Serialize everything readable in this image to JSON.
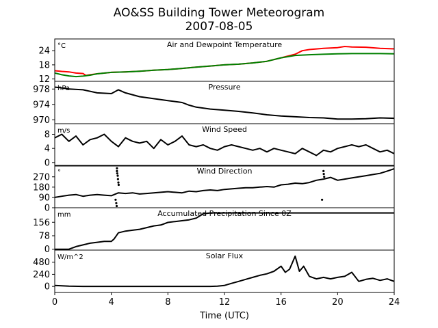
{
  "title_line1": "AO&SS Building Tower Meteorogram",
  "title_line2": "2007-08-05",
  "chart_data": {
    "type": "line",
    "xlabel": "Time (UTC)",
    "xlim": [
      0,
      24
    ],
    "xticks": [
      0,
      4,
      8,
      12,
      16,
      20,
      24
    ],
    "xtick_labels": [
      "0",
      "4",
      "8",
      "12",
      "16",
      "20",
      "24"
    ],
    "panels": [
      {
        "id": "temperature",
        "title": "Air and Dewpoint Temperature",
        "unit": "°C",
        "ylim": [
          11,
          29
        ],
        "yticks": [
          12,
          18,
          24
        ],
        "ytick_labels": [
          "12",
          "18",
          "24"
        ],
        "series": [
          {
            "color": "#ff0000",
            "x": [
              0,
              0.5,
              1,
              1.5,
              2,
              2.2,
              2.5,
              3,
              4,
              5,
              6,
              7,
              8,
              9,
              10,
              11,
              12,
              13,
              14,
              15,
              16,
              17,
              17.5,
              18,
              19,
              20,
              20.5,
              21,
              22,
              23,
              24
            ],
            "y": [
              15.5,
              15.2,
              15.0,
              14.5,
              14.3,
              13.5,
              13.8,
              14.2,
              14.8,
              15.0,
              15.3,
              15.7,
              16.0,
              16.5,
              17.0,
              17.5,
              18.0,
              18.3,
              18.8,
              19.5,
              21.0,
              22.5,
              24.0,
              24.5,
              25.0,
              25.3,
              25.8,
              25.6,
              25.5,
              25.0,
              24.8
            ]
          },
          {
            "color": "#008000",
            "x": [
              0,
              0.5,
              1,
              1.5,
              2,
              2.5,
              3,
              4,
              5,
              6,
              7,
              8,
              9,
              10,
              11,
              12,
              13,
              14,
              15,
              16,
              17,
              18,
              19,
              20,
              21,
              22,
              23,
              24
            ],
            "y": [
              14.5,
              13.8,
              13.3,
              13.0,
              13.2,
              13.6,
              14.2,
              14.8,
              15.0,
              15.3,
              15.7,
              16.0,
              16.5,
              17.0,
              17.5,
              18.0,
              18.3,
              18.8,
              19.5,
              21.0,
              22.0,
              22.3,
              22.5,
              22.7,
              22.8,
              22.8,
              22.8,
              22.7
            ]
          }
        ]
      },
      {
        "id": "pressure",
        "title": "Pressure",
        "unit": "hPa",
        "ylim": [
          969,
          980
        ],
        "yticks": [
          970,
          974,
          978
        ],
        "ytick_labels": [
          "970",
          "974",
          "978"
        ],
        "series": [
          {
            "color": "#000000",
            "x": [
              0,
              0.5,
              1,
              2,
              3,
              4,
              4.5,
              5,
              6,
              7,
              8,
              9,
              9.5,
              10,
              11,
              12,
              13,
              14,
              15,
              16,
              17,
              18,
              19,
              20,
              21,
              22,
              23,
              24
            ],
            "y": [
              978.5,
              978.3,
              978.0,
              977.8,
              977.0,
              976.8,
              977.8,
              977.0,
              976.0,
              975.5,
              975.0,
              974.5,
              973.8,
              973.3,
              972.8,
              972.5,
              972.2,
              971.8,
              971.3,
              971.0,
              970.8,
              970.6,
              970.5,
              970.2,
              970.2,
              970.3,
              970.5,
              970.4
            ]
          }
        ]
      },
      {
        "id": "wind_speed",
        "title": "Wind Speed",
        "unit": "m/s",
        "ylim": [
          -1,
          11
        ],
        "yticks": [
          0,
          4,
          8
        ],
        "ytick_labels": [
          "0",
          "4",
          "8"
        ],
        "series": [
          {
            "color": "#000000",
            "x": [
              0,
              0.5,
              1,
              1.5,
              2,
              2.5,
              3,
              3.5,
              4,
              4.5,
              5,
              5.5,
              6,
              6.5,
              7,
              7.5,
              8,
              8.5,
              9,
              9.5,
              10,
              10.5,
              11,
              11.5,
              12,
              12.5,
              13,
              13.5,
              14,
              14.5,
              15,
              15.5,
              16,
              16.5,
              17,
              17.5,
              18,
              18.5,
              19,
              19.5,
              20,
              20.5,
              21,
              21.5,
              22,
              22.5,
              23,
              23.5,
              24
            ],
            "y": [
              7,
              8,
              6,
              7.5,
              5,
              6.5,
              7,
              8,
              6,
              4.5,
              7,
              6,
              5.5,
              6,
              4,
              6.5,
              5,
              6,
              7.5,
              5,
              4.5,
              5,
              4,
              3.5,
              4.5,
              5,
              4.5,
              4,
              3.5,
              4,
              3,
              4,
              3.5,
              3,
              2.5,
              4,
              3,
              2,
              3.5,
              3,
              4,
              4.5,
              5,
              4.5,
              5,
              4,
              3,
              3.5,
              2.5
            ]
          }
        ]
      },
      {
        "id": "wind_direction",
        "title": "Wind Direction",
        "unit": "°",
        "ylim": [
          0,
          370
        ],
        "yticks": [
          0,
          90,
          180,
          270
        ],
        "ytick_labels": [
          "0",
          "90",
          "180",
          "270"
        ],
        "series": [
          {
            "color": "#000000",
            "x": [
              0,
              0.5,
              1,
              1.5,
              2,
              2.5,
              3,
              3.5,
              4,
              4.5,
              5,
              5.5,
              6,
              6.5,
              7,
              7.5,
              8,
              8.5,
              9,
              9.5,
              10,
              10.5,
              11,
              11.5,
              12,
              12.5,
              13,
              13.5,
              14,
              14.5,
              15,
              15.5,
              16,
              16.5,
              17,
              17.5,
              18,
              18.5,
              19,
              19.5,
              20,
              20.5,
              21,
              21.5,
              22,
              22.5,
              23,
              23.5,
              24
            ],
            "y": [
              90,
              100,
              110,
              115,
              100,
              110,
              115,
              110,
              105,
              130,
              125,
              130,
              120,
              125,
              130,
              135,
              140,
              135,
              130,
              145,
              140,
              150,
              155,
              150,
              160,
              165,
              170,
              175,
              175,
              180,
              185,
              180,
              200,
              205,
              215,
              210,
              220,
              240,
              250,
              265,
              240,
              250,
              260,
              270,
              280,
              290,
              300,
              320,
              340
            ]
          }
        ],
        "scatter": {
          "color": "#000000",
          "x": [
            4.4,
            4.4,
            4.42,
            4.45,
            4.47,
            4.5,
            4.52,
            4.3,
            4.35,
            4.38,
            19,
            19.02,
            19.05,
            18.9
          ],
          "y": [
            345,
            320,
            300,
            280,
            250,
            220,
            200,
            70,
            40,
            15,
            320,
            295,
            270,
            70
          ]
        }
      },
      {
        "id": "precipitation",
        "title": "Accumulated Precipitation Since 0Z",
        "unit": "mm",
        "ylim": [
          -5,
          240
        ],
        "yticks": [
          0,
          78,
          156
        ],
        "ytick_labels": [
          "0",
          "78",
          "156"
        ],
        "series": [
          {
            "color": "#000000",
            "x": [
              0,
              1.0,
              1.5,
              2.0,
              2.5,
              3.0,
              3.5,
              4.0,
              4.2,
              4.5,
              5.0,
              5.5,
              6.0,
              6.5,
              7.0,
              7.5,
              8.0,
              8.5,
              9.0,
              9.5,
              10.0,
              10.5,
              11.0,
              11.5,
              12.0,
              24.0
            ],
            "y": [
              0,
              0,
              15,
              25,
              35,
              40,
              45,
              45,
              60,
              95,
              105,
              110,
              115,
              125,
              135,
              140,
              155,
              160,
              165,
              170,
              180,
              205,
              210,
              210,
              210,
              210
            ]
          }
        ]
      },
      {
        "id": "solar_flux",
        "title": "Solar Flux",
        "unit": "W/m^2",
        "ylim": [
          -120,
          720
        ],
        "yticks": [
          0,
          240,
          480
        ],
        "ytick_labels": [
          "0",
          "240",
          "480"
        ],
        "series": [
          {
            "color": "#000000",
            "x": [
              0,
              1,
              2,
              3,
              4,
              5,
              6,
              7,
              8,
              9,
              10,
              11,
              11.5,
              12,
              12.5,
              13,
              13.5,
              14,
              14.5,
              15,
              15.5,
              16,
              16.3,
              16.6,
              17,
              17.3,
              17.6,
              18,
              18.5,
              19,
              19.5,
              20,
              20.5,
              21,
              21.5,
              22,
              22.5,
              23,
              23.5,
              24
            ],
            "y": [
              20,
              5,
              0,
              0,
              0,
              0,
              0,
              0,
              0,
              0,
              0,
              0,
              5,
              20,
              60,
              100,
              140,
              180,
              220,
              250,
              300,
              400,
              280,
              340,
              600,
              300,
              400,
              200,
              150,
              180,
              150,
              180,
              200,
              280,
              100,
              140,
              160,
              120,
              150,
              100
            ]
          }
        ]
      }
    ]
  }
}
